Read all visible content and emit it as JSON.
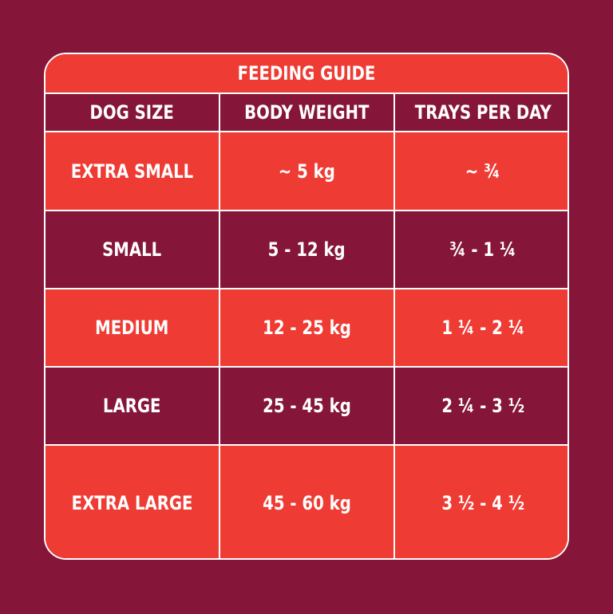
{
  "guide": {
    "title": "FEEDING GUIDE",
    "columns": [
      "DOG SIZE",
      "BODY WEIGHT",
      "TRAYS PER DAY"
    ],
    "rows": [
      {
        "size": "EXTRA SMALL",
        "weight": "~ 5 kg",
        "trays": "~ ¾"
      },
      {
        "size": "SMALL",
        "weight": "5 - 12 kg",
        "trays": "¾ - 1 ¼"
      },
      {
        "size": "MEDIUM",
        "weight": "12 - 25 kg",
        "trays": "1 ¼ - 2 ¼"
      },
      {
        "size": "LARGE",
        "weight": "25 - 45 kg",
        "trays": "2 ¼ - 3 ½"
      },
      {
        "size": "EXTRA LARGE",
        "weight": "45 - 60 kg",
        "trays": "3 ½ - 4 ½"
      }
    ]
  },
  "colors": {
    "background": "#85163a",
    "accent_red": "#ee3b34",
    "border": "#ffffff",
    "text": "#ffffff"
  }
}
